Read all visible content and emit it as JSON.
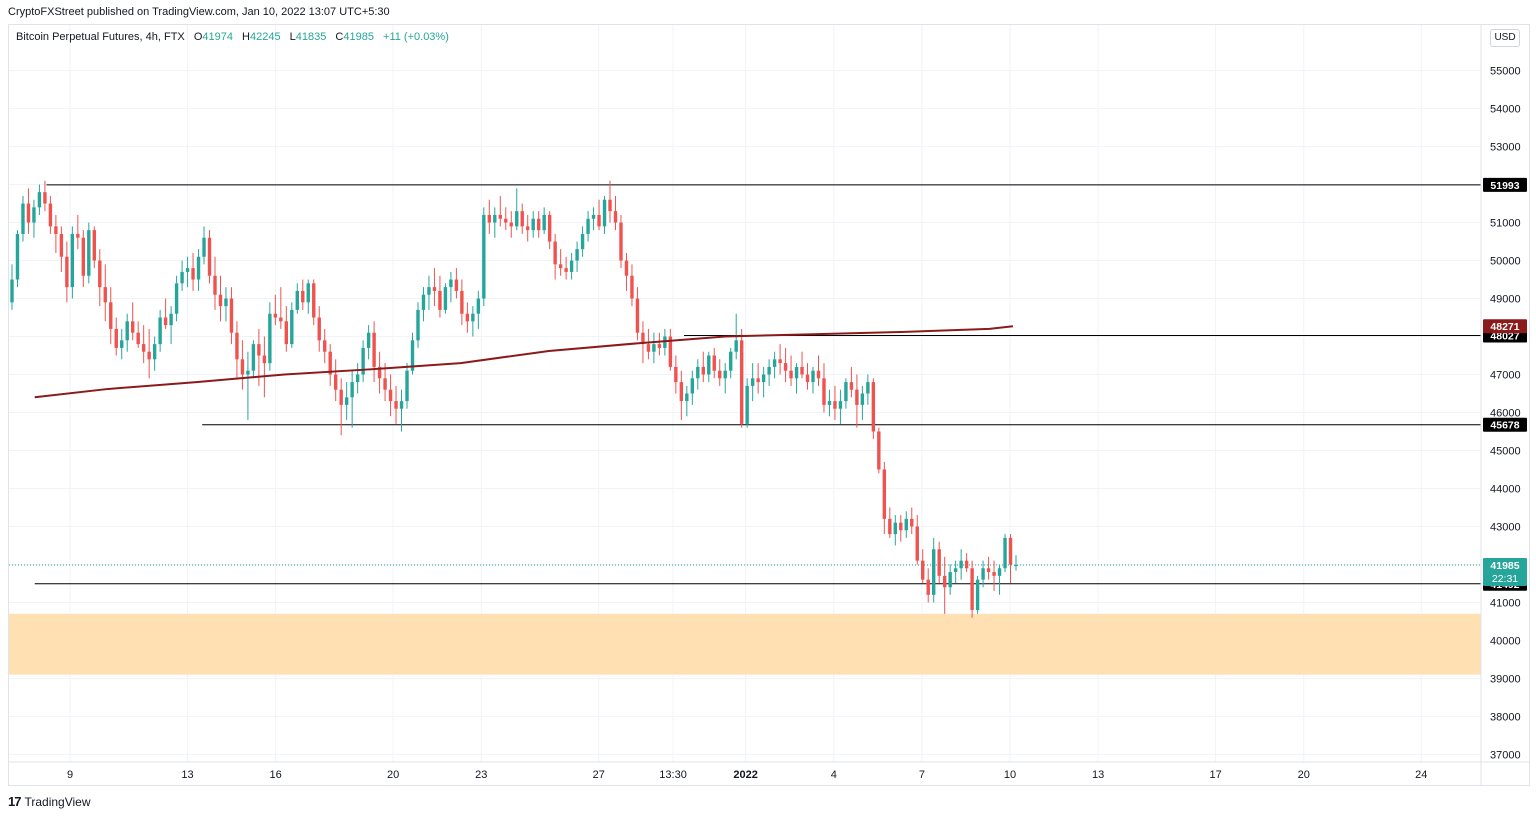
{
  "publisher_line": "CryptoFXStreet published on TradingView.com, Jan 10, 2022 13:07 UTC+5:30",
  "legend": {
    "symbol": "Bitcoin Perpetual Futures, 4h, FTX",
    "open_label": "O",
    "open": "41974",
    "high_label": "H",
    "high": "42245",
    "low_label": "L",
    "low": "41835",
    "close_label": "C",
    "close": "41985",
    "change": "+11 (+0.03%)"
  },
  "currency_button": "USD",
  "footer_logo": {
    "mark": "17",
    "text": "TradingView"
  },
  "colors": {
    "up": "#26a69a",
    "down": "#ef5350",
    "ma": "#8b1a1a",
    "level": "#000000",
    "zone": "#ffe0b2",
    "price": "#26a69a",
    "grid": "#f0f3fa"
  },
  "chart_data": {
    "type": "candlestick",
    "timeframe": "4h",
    "ylim": [
      36800,
      56200
    ],
    "y_ticks": [
      37000,
      38000,
      39000,
      40000,
      41000,
      42000,
      43000,
      44000,
      45000,
      46000,
      47000,
      48000,
      49000,
      50000,
      51000,
      52000,
      53000,
      54000,
      55000
    ],
    "x_ticks": [
      {
        "day": 8.7,
        "label": "9",
        "bold": false
      },
      {
        "day": 12.7,
        "label": "13",
        "bold": false
      },
      {
        "day": 15.7,
        "label": "16",
        "bold": false
      },
      {
        "day": 19.7,
        "label": "20",
        "bold": false
      },
      {
        "day": 22.7,
        "label": "23",
        "bold": false
      },
      {
        "day": 26.7,
        "label": "27",
        "bold": false
      },
      {
        "day": 29.23,
        "label": "13:30",
        "bold": false
      },
      {
        "day": 31.7,
        "label": "2022",
        "bold": true
      },
      {
        "day": 34.7,
        "label": "4",
        "bold": false
      },
      {
        "day": 37.7,
        "label": "7",
        "bold": false
      },
      {
        "day": 40.7,
        "label": "10",
        "bold": false
      },
      {
        "day": 43.7,
        "label": "13",
        "bold": false
      },
      {
        "day": 47.7,
        "label": "17",
        "bold": false
      },
      {
        "day": 50.7,
        "label": "20",
        "bold": false
      },
      {
        "day": 54.7,
        "label": "24",
        "bold": false
      }
    ],
    "candles_ohlc": [
      [
        48900,
        49900,
        48700,
        49500
      ],
      [
        49500,
        50800,
        49300,
        50700
      ],
      [
        50700,
        51700,
        50500,
        51500
      ],
      [
        51500,
        51900,
        50700,
        51000
      ],
      [
        51000,
        51600,
        50600,
        51400
      ],
      [
        51400,
        52000,
        51200,
        51800
      ],
      [
        51800,
        52100,
        51300,
        51500
      ],
      [
        51500,
        51700,
        50700,
        50900
      ],
      [
        50900,
        51200,
        50200,
        50700
      ],
      [
        50700,
        50900,
        49700,
        50100
      ],
      [
        50100,
        50500,
        48900,
        49300
      ],
      [
        49300,
        50900,
        49000,
        50700
      ],
      [
        50700,
        51200,
        50300,
        50600
      ],
      [
        50600,
        50800,
        49300,
        49600
      ],
      [
        49600,
        51000,
        49400,
        50800
      ],
      [
        50800,
        50900,
        49800,
        50000
      ],
      [
        50000,
        50300,
        48800,
        49300
      ],
      [
        49300,
        49900,
        48400,
        48900
      ],
      [
        48900,
        49300,
        47800,
        48200
      ],
      [
        48200,
        48500,
        47500,
        47700
      ],
      [
        47700,
        48200,
        47400,
        47900
      ],
      [
        47900,
        48600,
        47600,
        48400
      ],
      [
        48400,
        48900,
        47900,
        48100
      ],
      [
        48100,
        48400,
        47700,
        47800
      ],
      [
        47800,
        48300,
        47300,
        47600
      ],
      [
        47600,
        48200,
        46900,
        47400
      ],
      [
        47400,
        48000,
        47100,
        47800
      ],
      [
        47800,
        48700,
        47600,
        48500
      ],
      [
        48500,
        49000,
        48200,
        48300
      ],
      [
        48300,
        48800,
        47800,
        48600
      ],
      [
        48600,
        49600,
        48400,
        49400
      ],
      [
        49400,
        50000,
        49200,
        49700
      ],
      [
        49700,
        50100,
        49300,
        49800
      ],
      [
        49800,
        50200,
        49200,
        49500
      ],
      [
        49500,
        50300,
        49200,
        50100
      ],
      [
        50100,
        50900,
        49900,
        50600
      ],
      [
        50600,
        50800,
        49400,
        49600
      ],
      [
        49600,
        50100,
        48700,
        49100
      ],
      [
        49100,
        49600,
        48400,
        48800
      ],
      [
        48800,
        49300,
        48400,
        49000
      ],
      [
        49000,
        49300,
        47800,
        48100
      ],
      [
        48100,
        48400,
        46900,
        47400
      ],
      [
        47400,
        47900,
        46600,
        47000
      ],
      [
        47000,
        47600,
        45800,
        47100
      ],
      [
        47100,
        47900,
        46900,
        47800
      ],
      [
        47800,
        48200,
        46700,
        47500
      ],
      [
        47500,
        48000,
        46400,
        47300
      ],
      [
        47300,
        48900,
        47100,
        48600
      ],
      [
        48600,
        49100,
        48300,
        48500
      ],
      [
        48500,
        49300,
        48200,
        48400
      ],
      [
        48400,
        48800,
        47600,
        47800
      ],
      [
        47800,
        48900,
        47700,
        48700
      ],
      [
        48700,
        49400,
        48600,
        49200
      ],
      [
        49200,
        49500,
        48700,
        48900
      ],
      [
        48900,
        49500,
        48600,
        49400
      ],
      [
        49400,
        49500,
        48300,
        48500
      ],
      [
        48500,
        48800,
        47600,
        47900
      ],
      [
        47900,
        48200,
        47300,
        47600
      ],
      [
        47600,
        47800,
        46700,
        47000
      ],
      [
        47000,
        47400,
        46300,
        46600
      ],
      [
        46600,
        46900,
        45400,
        46200
      ],
      [
        46200,
        46800,
        45800,
        46400
      ],
      [
        46400,
        47100,
        45600,
        46800
      ],
      [
        46800,
        47300,
        46500,
        47000
      ],
      [
        47000,
        47900,
        46800,
        47700
      ],
      [
        47700,
        48300,
        47400,
        48100
      ],
      [
        48100,
        48400,
        46800,
        47200
      ],
      [
        47200,
        47600,
        46500,
        46900
      ],
      [
        46900,
        47300,
        46300,
        46600
      ],
      [
        46600,
        47000,
        45900,
        46300
      ],
      [
        46300,
        46700,
        45700,
        46100
      ],
      [
        46100,
        46600,
        45500,
        46300
      ],
      [
        46300,
        47300,
        46100,
        47100
      ],
      [
        47100,
        48100,
        47000,
        47900
      ],
      [
        47900,
        48900,
        47700,
        48700
      ],
      [
        48700,
        49300,
        48400,
        49100
      ],
      [
        49100,
        49600,
        48700,
        49300
      ],
      [
        49300,
        49800,
        48800,
        49200
      ],
      [
        49200,
        49600,
        48500,
        48700
      ],
      [
        48700,
        49400,
        48600,
        49300
      ],
      [
        49300,
        49700,
        48900,
        49500
      ],
      [
        49500,
        49800,
        49000,
        49200
      ],
      [
        49200,
        49500,
        48300,
        48600
      ],
      [
        48600,
        48900,
        48100,
        48400
      ],
      [
        48400,
        48800,
        48000,
        48600
      ],
      [
        48600,
        49200,
        48200,
        49000
      ],
      [
        49000,
        51400,
        48800,
        51200
      ],
      [
        51200,
        51600,
        50700,
        51000
      ],
      [
        51000,
        51400,
        50600,
        51200
      ],
      [
        51200,
        51700,
        50900,
        51100
      ],
      [
        51100,
        51400,
        50800,
        51000
      ],
      [
        51000,
        51300,
        50600,
        50900
      ],
      [
        50900,
        51900,
        50800,
        51300
      ],
      [
        51300,
        51500,
        50700,
        50900
      ],
      [
        50900,
        51200,
        50500,
        50800
      ],
      [
        50800,
        51300,
        50600,
        51100
      ],
      [
        51100,
        51300,
        50600,
        50800
      ],
      [
        50800,
        51400,
        50700,
        51200
      ],
      [
        51200,
        51300,
        50300,
        50500
      ],
      [
        50500,
        50700,
        49500,
        49900
      ],
      [
        49900,
        50300,
        49600,
        49800
      ],
      [
        49800,
        50100,
        49500,
        49700
      ],
      [
        49700,
        50200,
        49500,
        50000
      ],
      [
        50000,
        50500,
        49700,
        50300
      ],
      [
        50300,
        50900,
        50100,
        50700
      ],
      [
        50700,
        51300,
        50500,
        51100
      ],
      [
        51100,
        51400,
        50800,
        51200
      ],
      [
        51200,
        51600,
        50800,
        50900
      ],
      [
        50900,
        51700,
        50700,
        51600
      ],
      [
        51600,
        52100,
        51000,
        51300
      ],
      [
        51300,
        51700,
        50800,
        51000
      ],
      [
        51000,
        51200,
        49800,
        50000
      ],
      [
        50000,
        50200,
        49200,
        49600
      ],
      [
        49600,
        49900,
        48800,
        49000
      ],
      [
        49000,
        49300,
        47900,
        48100
      ],
      [
        48100,
        48400,
        47300,
        47800
      ],
      [
        47800,
        48200,
        47400,
        47600
      ],
      [
        47600,
        48100,
        47300,
        47800
      ],
      [
        47800,
        48100,
        47500,
        47700
      ],
      [
        47700,
        48200,
        47500,
        48000
      ],
      [
        48000,
        48200,
        47100,
        47200
      ],
      [
        47200,
        47500,
        46500,
        46800
      ],
      [
        46800,
        47100,
        45800,
        46300
      ],
      [
        46300,
        46700,
        45900,
        46500
      ],
      [
        46500,
        47100,
        46200,
        46900
      ],
      [
        46900,
        47400,
        46600,
        47200
      ],
      [
        47200,
        47600,
        46800,
        47000
      ],
      [
        47000,
        47600,
        46800,
        47500
      ],
      [
        47500,
        47700,
        46900,
        47100
      ],
      [
        47100,
        47400,
        46700,
        46900
      ],
      [
        46900,
        47300,
        46500,
        47100
      ],
      [
        47100,
        47700,
        46900,
        47600
      ],
      [
        47600,
        48600,
        47400,
        47900
      ],
      [
        47900,
        48200,
        45600,
        45700
      ],
      [
        45700,
        46900,
        45600,
        46700
      ],
      [
        46700,
        47300,
        46300,
        46900
      ],
      [
        46900,
        47300,
        46500,
        46800
      ],
      [
        46800,
        47200,
        46400,
        47000
      ],
      [
        47000,
        47400,
        46700,
        47200
      ],
      [
        47200,
        47600,
        46900,
        47400
      ],
      [
        47400,
        47800,
        47000,
        47300
      ],
      [
        47300,
        47700,
        46800,
        47100
      ],
      [
        47100,
        47500,
        46700,
        46900
      ],
      [
        46900,
        47300,
        46500,
        47200
      ],
      [
        47200,
        47600,
        46900,
        47000
      ],
      [
        47000,
        47300,
        46600,
        46800
      ],
      [
        46800,
        47200,
        46500,
        47100
      ],
      [
        47100,
        47500,
        46700,
        46900
      ],
      [
        46900,
        47300,
        46000,
        46200
      ],
      [
        46200,
        46600,
        45900,
        46300
      ],
      [
        46300,
        46700,
        45800,
        46100
      ],
      [
        46100,
        46600,
        45700,
        46300
      ],
      [
        46300,
        46900,
        46100,
        46800
      ],
      [
        46800,
        47200,
        46400,
        46600
      ],
      [
        46600,
        47000,
        45600,
        46200
      ],
      [
        46200,
        46700,
        45800,
        46500
      ],
      [
        46500,
        47000,
        46200,
        46800
      ],
      [
        46800,
        46900,
        45300,
        45500
      ],
      [
        45500,
        45600,
        44400,
        44500
      ],
      [
        44500,
        44700,
        42800,
        43200
      ],
      [
        43200,
        43500,
        42700,
        42800
      ],
      [
        42800,
        43300,
        42500,
        43100
      ],
      [
        43100,
        43300,
        42600,
        42900
      ],
      [
        42900,
        43400,
        42700,
        43200
      ],
      [
        43200,
        43500,
        42800,
        43000
      ],
      [
        43000,
        43300,
        42000,
        42100
      ],
      [
        42100,
        42400,
        41500,
        41600
      ],
      [
        41600,
        41900,
        41000,
        41200
      ],
      [
        41200,
        42700,
        41000,
        42400
      ],
      [
        42400,
        42600,
        41500,
        41700
      ],
      [
        41700,
        42200,
        40700,
        41400
      ],
      [
        41400,
        42000,
        41200,
        41800
      ],
      [
        41800,
        42100,
        41500,
        41900
      ],
      [
        41900,
        42400,
        41600,
        42100
      ],
      [
        42100,
        42300,
        41800,
        41900
      ],
      [
        41900,
        42100,
        40600,
        40800
      ],
      [
        40800,
        41700,
        40700,
        41600
      ],
      [
        41600,
        42100,
        41400,
        41900
      ],
      [
        41900,
        42200,
        41600,
        41800
      ],
      [
        41800,
        42100,
        41300,
        41700
      ],
      [
        41700,
        42000,
        41200,
        41900
      ],
      [
        41900,
        42800,
        41800,
        42700
      ],
      [
        42700,
        42800,
        41500,
        42000
      ],
      [
        41974,
        42245,
        41835,
        41985
      ]
    ],
    "moving_average": [
      {
        "day": 7.5,
        "value": 46400
      },
      {
        "day": 10,
        "value": 46620
      },
      {
        "day": 13,
        "value": 46800
      },
      {
        "day": 16,
        "value": 47000
      },
      {
        "day": 19,
        "value": 47140
      },
      {
        "day": 22,
        "value": 47300
      },
      {
        "day": 25,
        "value": 47620
      },
      {
        "day": 28,
        "value": 47820
      },
      {
        "day": 31,
        "value": 48000
      },
      {
        "day": 34,
        "value": 48060
      },
      {
        "day": 37,
        "value": 48120
      },
      {
        "day": 40,
        "value": 48200
      },
      {
        "day": 40.8,
        "value": 48271
      }
    ],
    "horizontal_levels": [
      {
        "value": 51993,
        "label": "51993",
        "from_day": 7.9
      },
      {
        "value": 48027,
        "label": "48027",
        "from_day": 29.6
      },
      {
        "value": 45678,
        "label": "45678",
        "from_day": 13.2
      },
      {
        "value": 41492,
        "label": "41492",
        "from_day": 7.5
      }
    ],
    "demand_zone": {
      "low": 39100,
      "high": 40700
    },
    "current_price": {
      "value": 41985,
      "label": "41985",
      "countdown": "22:31"
    },
    "ma_last": {
      "value": 48271,
      "label": "48271"
    }
  }
}
